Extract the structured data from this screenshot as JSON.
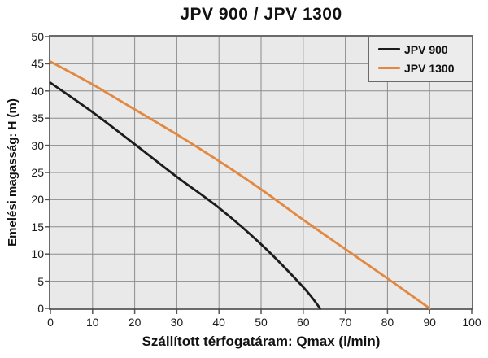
{
  "title": "JPV 900 / JPV 1300",
  "chart_data": {
    "type": "line",
    "title": "JPV 900 / JPV 1300",
    "xlabel": "Szállított térfogatáram: Qmax (l/min)",
    "ylabel": "Emelési magasság: H (m)",
    "xlim": [
      0,
      100
    ],
    "ylim": [
      0,
      50
    ],
    "x_ticks": [
      0,
      10,
      20,
      30,
      40,
      50,
      60,
      70,
      80,
      90,
      100
    ],
    "y_ticks": [
      0,
      5,
      10,
      15,
      20,
      25,
      30,
      35,
      40,
      45,
      50
    ],
    "grid": true,
    "grid_color": "#8c8c8c",
    "plot_background": "#e9e9e9",
    "legend_position": "top-right",
    "series": [
      {
        "name": "JPV 900",
        "color": "#1c1c1c",
        "points": [
          [
            0,
            41.5
          ],
          [
            10,
            36.1
          ],
          [
            20,
            30.2
          ],
          [
            30,
            24.2
          ],
          [
            40,
            18.5
          ],
          [
            50,
            11.8
          ],
          [
            60,
            3.9
          ],
          [
            64,
            0
          ]
        ]
      },
      {
        "name": "JPV 1300",
        "color": "#e28840",
        "points": [
          [
            0,
            45.4
          ],
          [
            10,
            41.2
          ],
          [
            20,
            36.6
          ],
          [
            30,
            32.0
          ],
          [
            40,
            27.1
          ],
          [
            50,
            21.9
          ],
          [
            60,
            16.3
          ],
          [
            70,
            10.9
          ],
          [
            80,
            5.5
          ],
          [
            90,
            0
          ]
        ]
      }
    ]
  }
}
